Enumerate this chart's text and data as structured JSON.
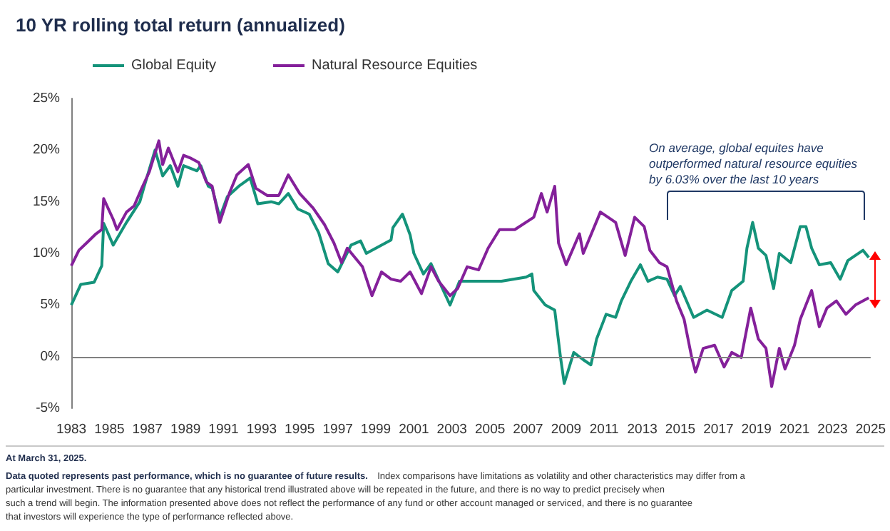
{
  "chart_data": {
    "type": "line",
    "title": "10 YR rolling total return (annualized)",
    "legend": "top left",
    "grid": false,
    "xlim": [
      1983,
      2025
    ],
    "xticks": [
      1983,
      1985,
      1987,
      1989,
      1991,
      1993,
      1995,
      1997,
      1999,
      2001,
      2003,
      2005,
      2007,
      2009,
      2011,
      2013,
      2015,
      2017,
      2019,
      2021,
      2023,
      2025
    ],
    "ylim": [
      -5,
      25
    ],
    "yticks": [
      {
        "value": -5,
        "label": "-5%"
      },
      {
        "value": 0,
        "label": "0%"
      },
      {
        "value": 5,
        "label": "5%"
      },
      {
        "value": 10,
        "label": "10%"
      },
      {
        "value": 15,
        "label": "15%"
      },
      {
        "value": 20,
        "label": "20%"
      },
      {
        "value": 25,
        "label": "25%"
      }
    ],
    "ref_lines": [
      {
        "axis": "y",
        "value": 0,
        "color": "#808080"
      }
    ],
    "series": [
      {
        "name": "Global Equity",
        "color": "#14937a",
        "x": [
          1983.0,
          1983.5,
          1984.2,
          1984.6,
          1984.7,
          1985.2,
          1985.9,
          1986.6,
          1986.8,
          1987.4,
          1987.8,
          1988.2,
          1988.6,
          1988.9,
          1989.6,
          1989.8,
          1990.2,
          1990.4,
          1990.8,
          1991.2,
          1991.8,
          1992.4,
          1992.8,
          1993.5,
          1993.9,
          1994.4,
          1994.9,
          1995.5,
          1996.0,
          1996.5,
          1997.0,
          1997.7,
          1998.2,
          1998.5,
          1999.8,
          1999.9,
          2000.4,
          2000.8,
          2001.0,
          2001.5,
          2001.9,
          2002.9,
          2003.4,
          2004.4,
          2005.6,
          2006.9,
          2007.2,
          2007.3,
          2007.9,
          2008.4,
          2008.7,
          2008.9,
          2009.4,
          2009.9,
          2010.3,
          2010.6,
          2011.1,
          2011.6,
          2011.9,
          2012.4,
          2012.9,
          2013.3,
          2013.8,
          2014.3,
          2014.7,
          2015.0,
          2015.7,
          2016.4,
          2017.2,
          2017.7,
          2018.3,
          2018.5,
          2018.8,
          2019.1,
          2019.5,
          2019.9,
          2020.2,
          2020.8,
          2021.3,
          2021.6,
          2021.9,
          2022.3,
          2022.9,
          2023.4,
          2023.8,
          2024.6,
          2024.9
        ],
        "values": [
          5.0,
          7.0,
          7.2,
          8.8,
          12.9,
          10.8,
          13.0,
          15.0,
          16.3,
          20.0,
          17.5,
          18.5,
          16.5,
          18.5,
          18.0,
          18.5,
          16.5,
          16.3,
          13.5,
          15.5,
          16.5,
          17.3,
          14.8,
          15.0,
          14.8,
          15.8,
          14.3,
          13.8,
          12.0,
          9.0,
          8.2,
          10.8,
          11.2,
          10.0,
          11.3,
          12.5,
          13.8,
          11.8,
          10.0,
          8.0,
          9.0,
          5.0,
          7.3,
          7.3,
          7.3,
          7.7,
          8.0,
          6.4,
          5.0,
          4.5,
          0.0,
          -2.6,
          0.4,
          -0.3,
          -0.8,
          1.7,
          4.1,
          3.8,
          5.4,
          7.3,
          8.9,
          7.3,
          7.7,
          7.5,
          5.9,
          6.8,
          3.8,
          4.5,
          3.8,
          6.4,
          7.3,
          10.5,
          13.0,
          10.5,
          9.8,
          6.6,
          10.0,
          9.1,
          12.6,
          12.6,
          10.5,
          8.9,
          9.1,
          7.5,
          9.3,
          10.3,
          9.6
        ]
      },
      {
        "name": "Natural Resource Equities",
        "color": "#84209a",
        "x": [
          1983.0,
          1983.4,
          1983.8,
          1984.3,
          1984.6,
          1984.7,
          1985.2,
          1985.4,
          1985.9,
          1986.3,
          1986.7,
          1987.1,
          1987.6,
          1987.8,
          1988.1,
          1988.6,
          1988.9,
          1989.3,
          1989.7,
          1990.1,
          1990.4,
          1990.8,
          1991.3,
          1991.7,
          1992.3,
          1992.7,
          1993.3,
          1993.9,
          1994.4,
          1995.0,
          1995.7,
          1996.3,
          1996.8,
          1997.2,
          1997.5,
          1998.3,
          1998.8,
          1999.3,
          1999.8,
          2000.3,
          2000.8,
          2001.4,
          2001.9,
          2002.3,
          2002.9,
          2003.3,
          2003.8,
          2004.4,
          2004.9,
          2005.5,
          2006.3,
          2007.3,
          2007.7,
          2008.0,
          2008.4,
          2008.6,
          2009.0,
          2009.7,
          2009.9,
          2010.8,
          2011.6,
          2012.1,
          2012.6,
          2013.1,
          2013.4,
          2013.9,
          2014.3,
          2014.8,
          2015.2,
          2015.6,
          2015.8,
          2016.2,
          2016.8,
          2017.3,
          2017.7,
          2018.2,
          2018.7,
          2019.1,
          2019.5,
          2019.8,
          2020.2,
          2020.5,
          2021.0,
          2021.3,
          2021.9,
          2022.3,
          2022.7,
          2023.2,
          2023.7,
          2024.2,
          2024.9
        ],
        "values": [
          8.8,
          10.3,
          11.0,
          11.9,
          12.3,
          15.3,
          13.3,
          12.3,
          14.0,
          14.6,
          16.3,
          17.9,
          20.9,
          18.6,
          20.2,
          17.9,
          19.5,
          19.2,
          18.8,
          16.9,
          16.5,
          13.0,
          15.8,
          17.6,
          18.6,
          16.3,
          15.6,
          15.6,
          17.6,
          15.8,
          14.4,
          12.8,
          11.0,
          9.1,
          10.5,
          8.7,
          5.9,
          8.2,
          7.5,
          7.3,
          8.2,
          6.1,
          8.7,
          7.3,
          5.9,
          6.6,
          8.7,
          8.4,
          10.5,
          12.3,
          12.3,
          13.5,
          15.8,
          14.0,
          16.5,
          11.0,
          8.9,
          11.9,
          10.0,
          14.0,
          13.0,
          9.8,
          13.5,
          12.6,
          10.3,
          9.1,
          8.7,
          5.4,
          3.6,
          -0.1,
          -1.5,
          0.8,
          1.1,
          -1.0,
          0.4,
          -0.1,
          4.7,
          1.7,
          0.8,
          -2.9,
          0.8,
          -1.2,
          1.1,
          3.6,
          6.4,
          2.9,
          4.7,
          5.4,
          4.1,
          5.0,
          5.7
        ]
      }
    ],
    "annotations": [
      "On average, global equites have\noutperformed natural resource equities\nby 6.03% over the last 10 years",
      "At March 31, 2025.",
      "Data quoted represents past performance, which is no guarantee of future results.",
      "Index comparisons have limitations as volatility and other characteristics may differ from a particular investment. There is no guarantee that any historical trend illustrated above will be repeated in the future, and there is no way to predict precisely when such a trend will begin. The information presented above does not reflect the performance of any fund or other account managed or serviced, and there is no guarantee that investors will experience the type of performance reflected above."
    ]
  }
}
